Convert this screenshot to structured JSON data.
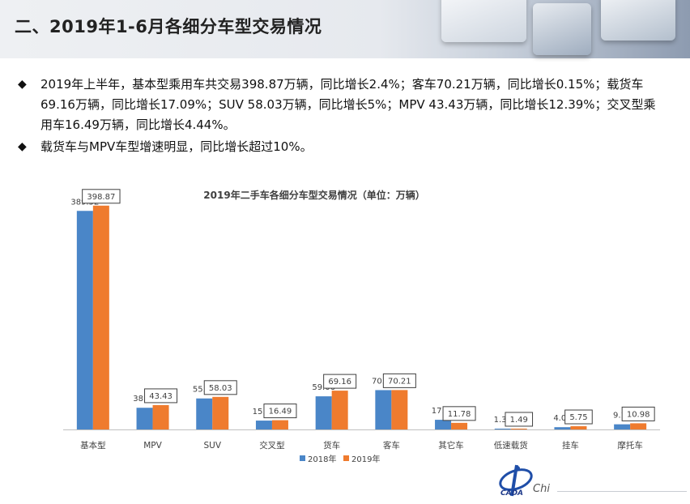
{
  "header": {
    "title": "二、2019年1-6月各细分车型交易情况"
  },
  "bullets": [
    "2019年上半年，基本型乘用车共交易398.87万辆，同比增长2.4%；客车70.21万辆，同比增长0.15%；载货车69.16万辆，同比增长17.09%；SUV 58.03万辆，同比增长5%；MPV 43.43万辆，同比增长12.39%；交叉型乘用车16.49万辆，同比增长4.44%。",
    "载货车与MPV车型增速明显，同比增长超过10%。"
  ],
  "bullet_symbol": "◆",
  "logo_text": "CADA",
  "brand_text": "Chi",
  "colors": {
    "series_2018": "#4a86c8",
    "series_2019": "#ef7b2e"
  },
  "chart_data": {
    "type": "bar",
    "title": "2019年二手车各细分车型交易情况（单位：万辆）",
    "categories": [
      "基本型",
      "MPV",
      "SUV",
      "交叉型",
      "货车",
      "客车",
      "其它车",
      "低速载货",
      "挂车",
      "摩托车"
    ],
    "series": [
      {
        "name": "2018年",
        "values": [
          389.52,
          38.64,
          55.27,
          15.78,
          59.06,
          70.11,
          17.23,
          1.37,
          4.06,
          9.19
        ]
      },
      {
        "name": "2019年",
        "values": [
          398.87,
          43.43,
          58.03,
          16.49,
          69.16,
          70.21,
          11.78,
          1.49,
          5.75,
          10.98
        ]
      }
    ],
    "ylim": [
      0,
      400
    ],
    "grid": false,
    "legend": "bottom",
    "data_labels": true,
    "boxed_labels_series": "2019年"
  }
}
